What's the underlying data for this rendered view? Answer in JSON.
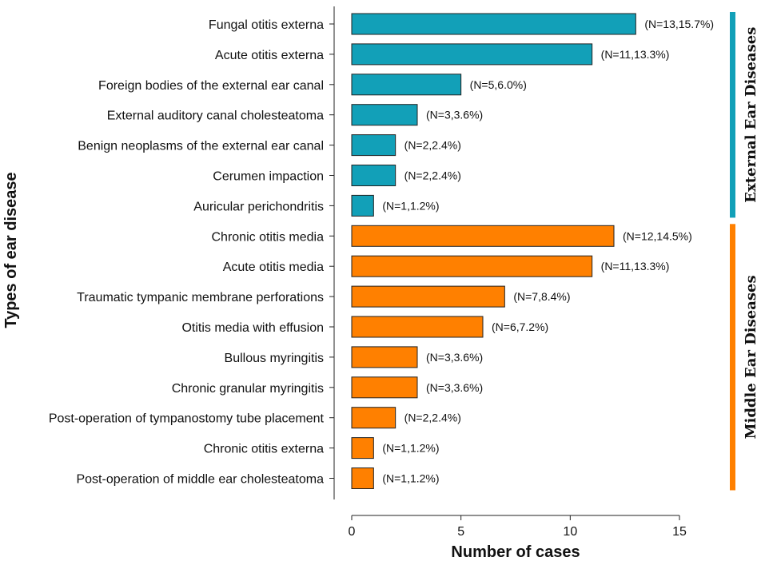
{
  "chart_data": {
    "type": "bar",
    "orientation": "horizontal",
    "title": "",
    "xlabel": "Number of cases",
    "ylabel": "Types of ear disease",
    "xlim": [
      0,
      15
    ],
    "xticks": [
      0,
      5,
      10,
      15
    ],
    "grid": false,
    "legend": "none",
    "groups": [
      {
        "name": "External Ear Diseases",
        "color": "#12a0b8",
        "categories": [
          "Fungal otitis externa",
          "Acute otitis externa",
          "Foreign bodies of the external ear canal",
          "External auditory canal cholesteatoma",
          "Benign neoplasms of the external ear canal",
          "Cerumen impaction",
          "Auricular perichondritis"
        ],
        "values": [
          13,
          11,
          5,
          3,
          2,
          2,
          1
        ],
        "labels": [
          "(N=13,15.7%)",
          "(N=11,13.3%)",
          "(N=5,6.0%)",
          "(N=3,3.6%)",
          "(N=2,2.4%)",
          "(N=2,2.4%)",
          "(N=1,1.2%)"
        ]
      },
      {
        "name": "Middle Ear Diseases",
        "color": "#ff8000",
        "categories": [
          "Chronic otitis media",
          "Acute otitis media",
          "Traumatic tympanic membrane perforations",
          "Otitis media with effusion",
          "Bullous myringitis",
          "Chronic granular myringitis",
          "Post-operation of tympanostomy tube placement",
          "Chronic otitis externa",
          "Post-operation of middle ear cholesteatoma"
        ],
        "values": [
          12,
          11,
          7,
          6,
          3,
          3,
          2,
          1,
          1
        ],
        "labels": [
          "(N=12,14.5%)",
          "(N=11,13.3%)",
          "(N=7,8.4%)",
          "(N=6,7.2%)",
          "(N=3,3.6%)",
          "(N=3,3.6%)",
          "(N=2,2.4%)",
          "(N=1,1.2%)",
          "(N=1,1.2%)"
        ]
      }
    ]
  }
}
